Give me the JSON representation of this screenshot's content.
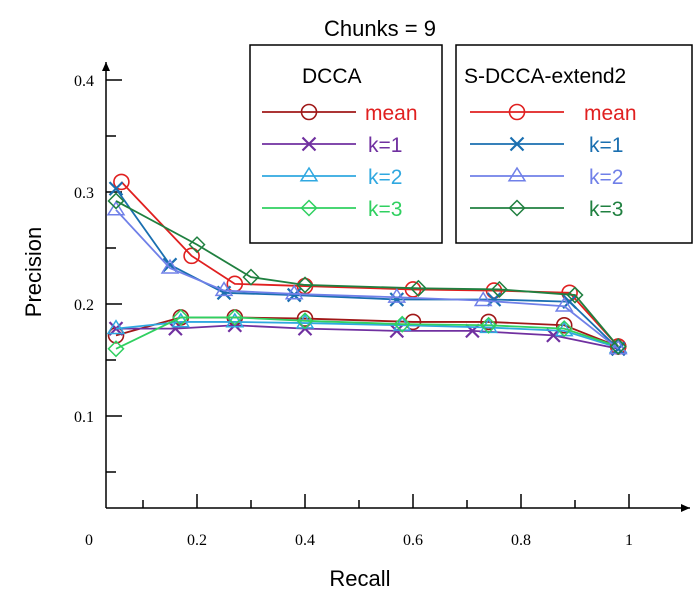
{
  "chart_data": {
    "type": "line",
    "title": "Chunks = 9",
    "xlabel": "Recall",
    "ylabel": "Precision",
    "xlim": [
      0,
      1.05
    ],
    "ylim": [
      0.08,
      0.42
    ],
    "xticks": [
      0,
      0.2,
      0.4,
      0.6,
      0.8,
      1
    ],
    "xtick_labels": [
      "0",
      "0.2",
      "0.4",
      "0.6",
      "0.8",
      "1"
    ],
    "yticks": [
      0.1,
      0.2,
      0.3,
      0.4
    ],
    "ytick_labels": [
      "0.1",
      "0.2",
      "0.3",
      "0.4"
    ],
    "grid": false,
    "legends": [
      {
        "title": "DCCA",
        "placement": "top-center",
        "entries": [
          {
            "label": "mean",
            "marker": "circle",
            "color": "#a01818",
            "label_color": "#e02020"
          },
          {
            "label": "k=1",
            "marker": "x",
            "color": "#7030a0",
            "label_color": "#7030a0"
          },
          {
            "label": "k=2",
            "marker": "triangle",
            "color": "#30a8e0",
            "label_color": "#30a8e0"
          },
          {
            "label": "k=3",
            "marker": "diamond",
            "color": "#30d060",
            "label_color": "#30d060"
          }
        ]
      },
      {
        "title": "S-DCCA-extend2",
        "placement": "top-right",
        "entries": [
          {
            "label": "mean",
            "marker": "circle",
            "color": "#e02020",
            "label_color": "#e02020"
          },
          {
            "label": "k=1",
            "marker": "x",
            "color": "#1a6fb0",
            "label_color": "#1a6fb0"
          },
          {
            "label": "k=2",
            "marker": "triangle",
            "color": "#7080e8",
            "label_color": "#7080e8"
          },
          {
            "label": "k=3",
            "marker": "diamond",
            "color": "#208040",
            "label_color": "#208040"
          }
        ]
      }
    ],
    "series": [
      {
        "group": "DCCA",
        "label": "mean",
        "marker": "circle",
        "color": "#a01818",
        "x": [
          0.05,
          0.17,
          0.27,
          0.4,
          0.6,
          0.74,
          0.88,
          0.98
        ],
        "y": [
          0.172,
          0.188,
          0.188,
          0.187,
          0.184,
          0.184,
          0.181,
          0.162
        ]
      },
      {
        "group": "DCCA",
        "label": "k=1",
        "marker": "x",
        "color": "#7030a0",
        "x": [
          0.05,
          0.16,
          0.27,
          0.4,
          0.57,
          0.71,
          0.86,
          0.98
        ],
        "y": [
          0.178,
          0.178,
          0.181,
          0.178,
          0.176,
          0.176,
          0.172,
          0.16
        ]
      },
      {
        "group": "DCCA",
        "label": "k=2",
        "marker": "triangle",
        "color": "#30a8e0",
        "x": [
          0.05,
          0.17,
          0.27,
          0.4,
          0.58,
          0.74,
          0.88,
          0.98
        ],
        "y": [
          0.178,
          0.184,
          0.184,
          0.183,
          0.181,
          0.179,
          0.176,
          0.161
        ]
      },
      {
        "group": "DCCA",
        "label": "k=3",
        "marker": "diamond",
        "color": "#30d060",
        "x": [
          0.05,
          0.17,
          0.27,
          0.4,
          0.58,
          0.74,
          0.88,
          0.98
        ],
        "y": [
          0.16,
          0.188,
          0.188,
          0.185,
          0.182,
          0.181,
          0.178,
          0.162
        ]
      },
      {
        "group": "S-DCCA-extend2",
        "label": "mean",
        "marker": "circle",
        "color": "#e02020",
        "x": [
          0.06,
          0.19,
          0.27,
          0.4,
          0.6,
          0.75,
          0.89,
          0.98
        ],
        "y": [
          0.309,
          0.243,
          0.218,
          0.216,
          0.213,
          0.212,
          0.21,
          0.162
        ]
      },
      {
        "group": "S-DCCA-extend2",
        "label": "k=1",
        "marker": "x",
        "color": "#1a6fb0",
        "x": [
          0.05,
          0.15,
          0.25,
          0.38,
          0.57,
          0.75,
          0.89,
          0.98
        ],
        "y": [
          0.303,
          0.235,
          0.21,
          0.208,
          0.204,
          0.204,
          0.202,
          0.16
        ]
      },
      {
        "group": "S-DCCA-extend2",
        "label": "k=2",
        "marker": "triangle",
        "color": "#7080e8",
        "x": [
          0.05,
          0.15,
          0.25,
          0.38,
          0.57,
          0.73,
          0.88,
          0.98
        ],
        "y": [
          0.284,
          0.232,
          0.212,
          0.209,
          0.206,
          0.203,
          0.198,
          0.16
        ]
      },
      {
        "group": "S-DCCA-extend2",
        "label": "k=3",
        "marker": "diamond",
        "color": "#208040",
        "x": [
          0.05,
          0.2,
          0.3,
          0.4,
          0.61,
          0.76,
          0.9,
          0.98
        ],
        "y": [
          0.292,
          0.253,
          0.224,
          0.217,
          0.214,
          0.213,
          0.208,
          0.162
        ]
      }
    ]
  }
}
